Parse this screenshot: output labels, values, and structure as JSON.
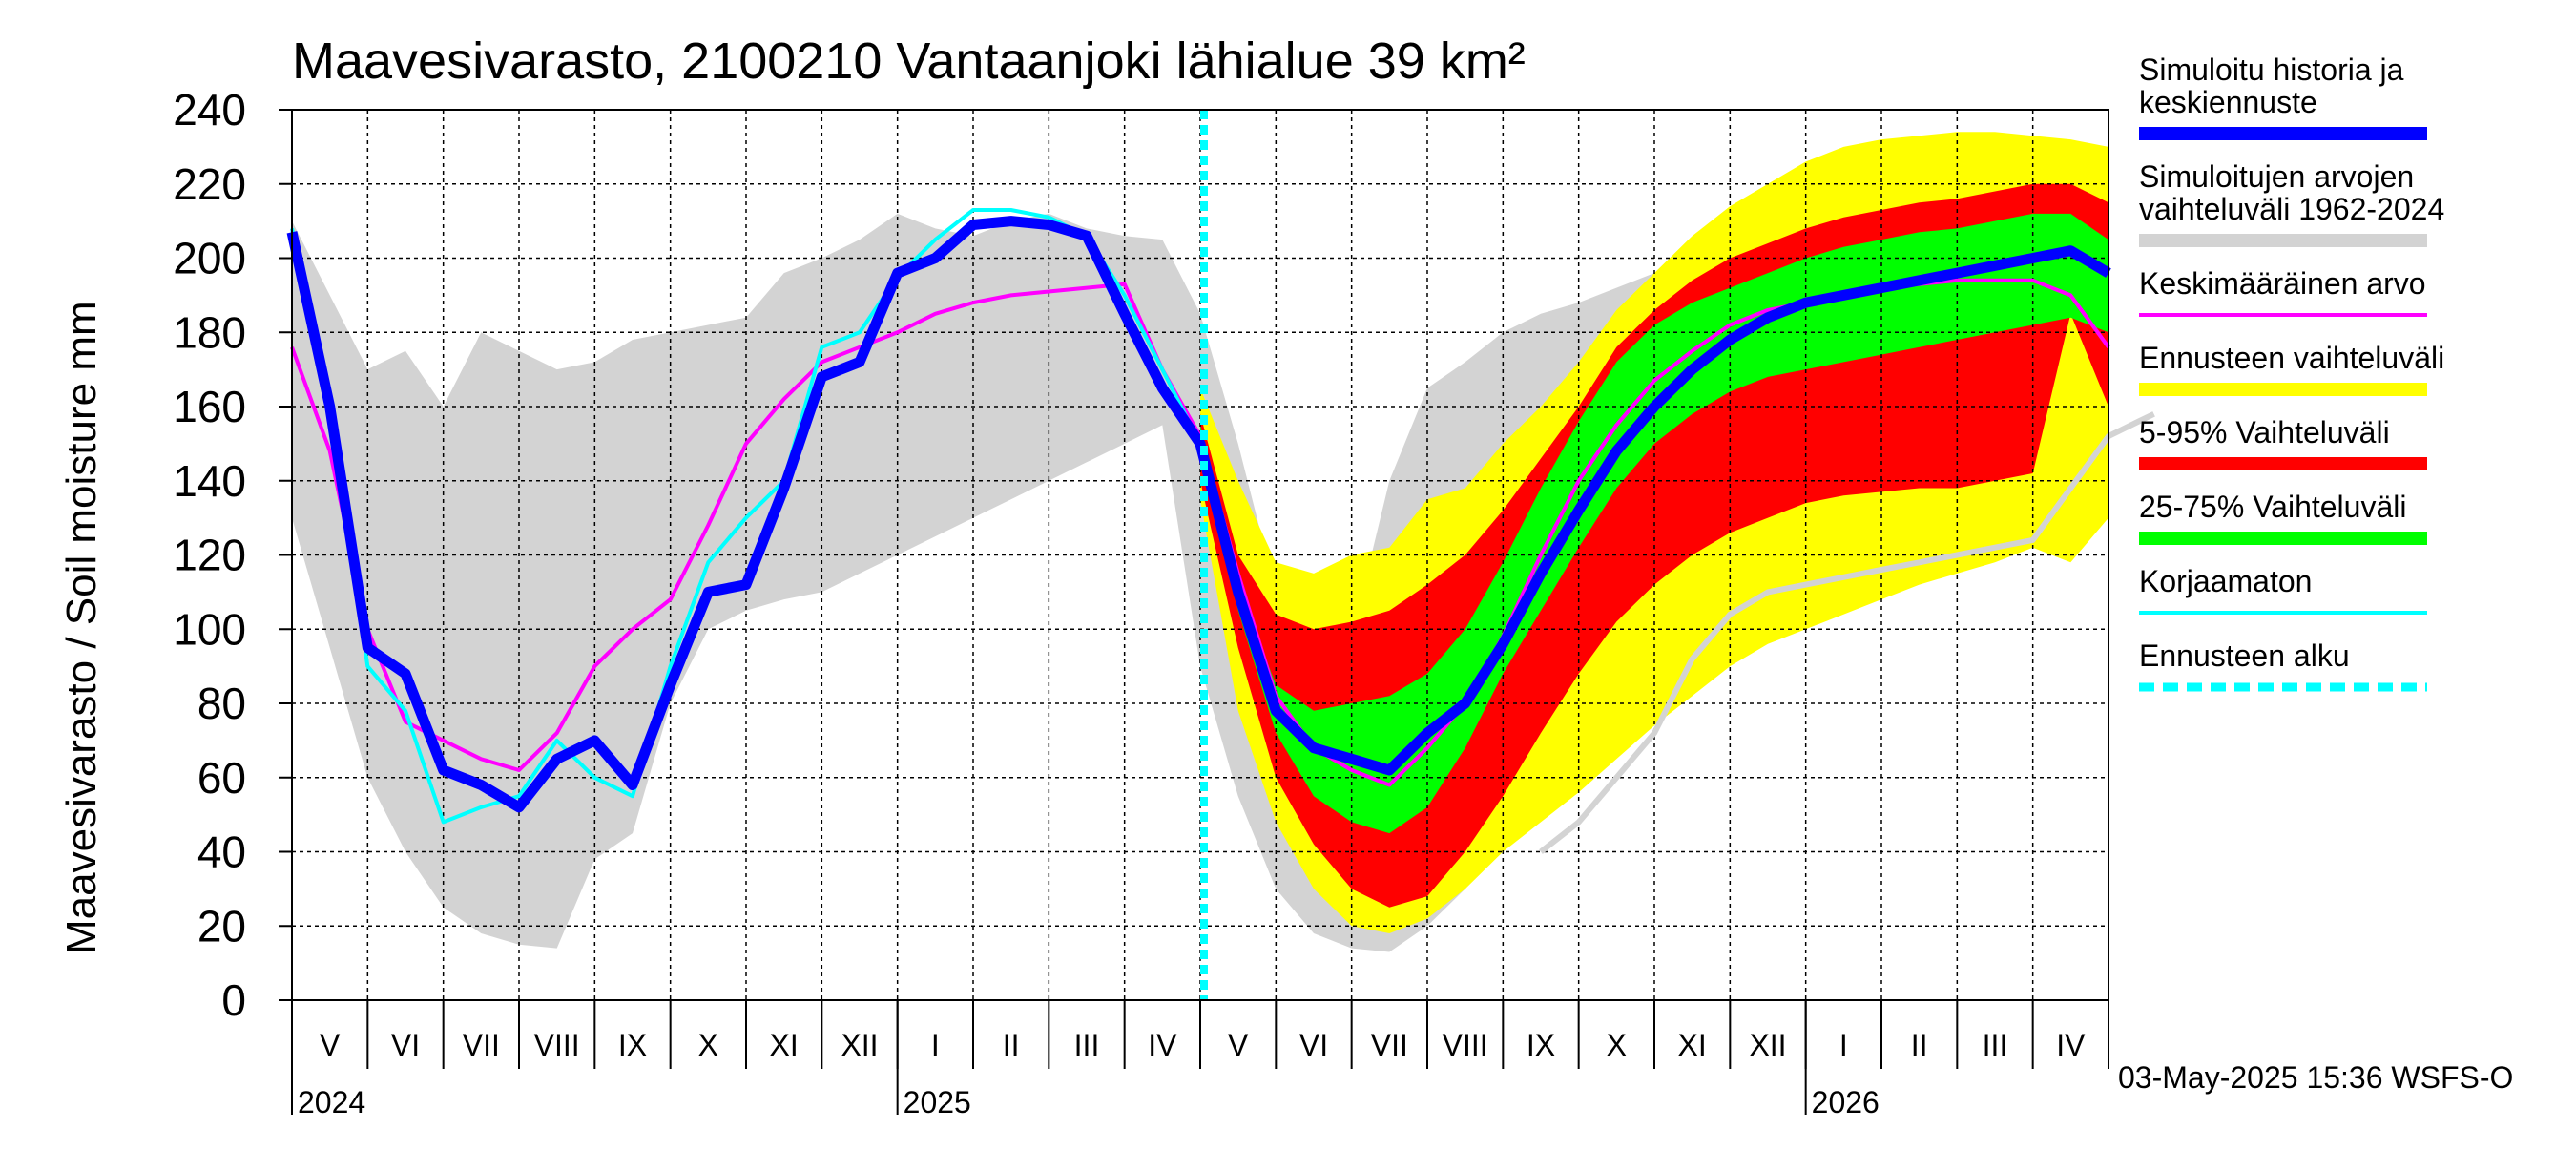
{
  "chart_data": {
    "type": "area",
    "title": "Maavesivarasto, 2100210 Vantaanjoki lähialue 39 km²",
    "ylabel": "Maavesivarasto / Soil moisture   mm",
    "xlabel": "",
    "ylim": [
      0,
      240
    ],
    "yticks": [
      0,
      20,
      40,
      60,
      80,
      100,
      120,
      140,
      160,
      180,
      200,
      220,
      240
    ],
    "grid": true,
    "legend_position": "right",
    "forecast_start_month": 12,
    "month_labels": [
      "V",
      "VI",
      "VII",
      "VIII",
      "IX",
      "X",
      "XI",
      "XII",
      "I",
      "II",
      "III",
      "IV",
      "V",
      "VI",
      "VII",
      "VIII",
      "IX",
      "X",
      "XI",
      "XII",
      "I",
      "II",
      "III",
      "IV"
    ],
    "year_labels": [
      {
        "label": "2024",
        "month_index": 0
      },
      {
        "label": "2025",
        "month_index": 8
      },
      {
        "label": "2026",
        "month_index": 20
      }
    ],
    "legend": [
      {
        "label": "Simuloitu historia ja keskiennuste",
        "color": "#0000ff",
        "style": "thick"
      },
      {
        "label": "Simuloitujen arvojen vaihteluväli 1962-2024",
        "color": "#d3d3d3",
        "style": "band"
      },
      {
        "label": "Keskimääräinen arvo",
        "color": "#ff00ff",
        "style": "line"
      },
      {
        "label": "Ennusteen vaihteluväli",
        "color": "#ffff00",
        "style": "band"
      },
      {
        "label": "5-95% Vaihteluväli",
        "color": "#ff0000",
        "style": "band"
      },
      {
        "label": "25-75% Vaihteluväli",
        "color": "#00ff00",
        "style": "band"
      },
      {
        "label": "Korjaamaton",
        "color": "#00ffff",
        "style": "line"
      },
      {
        "label": "Ennusteen alku",
        "color": "#00ffff",
        "style": "dashed"
      }
    ],
    "series": [
      {
        "name": "Simulated range min 1962-2024",
        "band": "grey_low",
        "x": [
          0,
          0.5,
          1,
          1.5,
          2,
          2.5,
          3,
          3.5,
          4,
          4.5,
          5,
          5.5,
          6,
          6.5,
          7,
          7.5,
          8,
          8.5,
          9,
          9.5,
          10,
          10.5,
          11,
          11.5,
          12,
          12.5,
          13,
          13.5,
          14,
          14.5,
          15,
          15.5,
          16,
          16.5,
          17,
          17.5,
          18,
          18.5,
          19,
          19.5,
          20,
          20.5,
          21,
          21.5,
          22,
          22.5,
          23,
          23.5,
          24
        ],
        "values": [
          130,
          95,
          60,
          40,
          25,
          18,
          15,
          14,
          38,
          45,
          80,
          100,
          105,
          108,
          110,
          115,
          120,
          125,
          130,
          135,
          140,
          145,
          150,
          155,
          90,
          55,
          30,
          18,
          14,
          13,
          20,
          30,
          42,
          55,
          70,
          82,
          90,
          95,
          100,
          105,
          110,
          112,
          114,
          116,
          118,
          120,
          125,
          132,
          132
        ]
      },
      {
        "name": "Simulated range max 1962-2024",
        "band": "grey_high",
        "x": [
          0,
          0.5,
          1,
          1.5,
          2,
          2.5,
          3,
          3.5,
          4,
          4.5,
          5,
          5.5,
          6,
          6.5,
          7,
          7.5,
          8,
          8.5,
          9,
          9.5,
          10,
          10.5,
          11,
          11.5,
          12,
          12.5,
          13,
          13.5,
          14,
          14.5,
          15,
          15.5,
          16,
          16.5,
          17,
          17.5,
          18,
          18.5,
          19,
          19.5,
          20,
          20.5,
          21,
          21.5,
          22,
          22.5,
          23,
          23.5,
          24
        ],
        "values": [
          210,
          190,
          170,
          175,
          160,
          180,
          175,
          170,
          172,
          178,
          180,
          182,
          184,
          196,
          200,
          205,
          212,
          208,
          206,
          210,
          212,
          208,
          206,
          205,
          185,
          150,
          110,
          100,
          98,
          140,
          165,
          172,
          180,
          185,
          188,
          192,
          196,
          200,
          203,
          205,
          207,
          208,
          208,
          208,
          208,
          208,
          208,
          208,
          208
        ]
      },
      {
        "name": "Forecast range min",
        "band": "yellow_low",
        "x": [
          12,
          12.5,
          13,
          13.5,
          14,
          14.5,
          15,
          15.5,
          16,
          16.5,
          17,
          17.5,
          18,
          18.5,
          19,
          19.5,
          20,
          20.5,
          21,
          21.5,
          22,
          22.5,
          23,
          23.5,
          24
        ],
        "values": [
          135,
          78,
          48,
          30,
          20,
          18,
          22,
          30,
          40,
          48,
          56,
          65,
          74,
          82,
          90,
          96,
          100,
          104,
          108,
          112,
          115,
          118,
          122,
          118,
          130
        ]
      },
      {
        "name": "Forecast range max",
        "band": "yellow_high",
        "x": [
          12,
          12.5,
          13,
          13.5,
          14,
          14.5,
          15,
          15.5,
          16,
          16.5,
          17,
          17.5,
          18,
          18.5,
          19,
          19.5,
          20,
          20.5,
          21,
          21.5,
          22,
          22.5,
          23,
          23.5,
          24
        ],
        "values": [
          165,
          140,
          118,
          115,
          120,
          122,
          135,
          138,
          150,
          160,
          172,
          186,
          196,
          206,
          214,
          220,
          226,
          230,
          232,
          233,
          234,
          234,
          233,
          232,
          230
        ]
      },
      {
        "name": "5-95% range low",
        "band": "red_low",
        "x": [
          12,
          12.5,
          13,
          13.5,
          14,
          14.5,
          15,
          15.5,
          16,
          16.5,
          17,
          17.5,
          18,
          18.5,
          19,
          19.5,
          20,
          20.5,
          21,
          21.5,
          22,
          22.5,
          23,
          23.5,
          24
        ],
        "values": [
          140,
          95,
          60,
          42,
          30,
          25,
          28,
          40,
          55,
          72,
          88,
          102,
          112,
          120,
          126,
          130,
          134,
          136,
          137,
          138,
          138,
          140,
          142,
          185,
          160
        ]
      },
      {
        "name": "5-95% range high",
        "band": "red_high",
        "x": [
          12,
          12.5,
          13,
          13.5,
          14,
          14.5,
          15,
          15.5,
          16,
          16.5,
          17,
          17.5,
          18,
          18.5,
          19,
          19.5,
          20,
          20.5,
          21,
          21.5,
          22,
          22.5,
          23,
          23.5,
          24
        ],
        "values": [
          158,
          120,
          104,
          100,
          102,
          105,
          112,
          120,
          132,
          146,
          160,
          176,
          186,
          194,
          200,
          204,
          208,
          211,
          213,
          215,
          216,
          218,
          220,
          220,
          215
        ]
      },
      {
        "name": "25-75% range low",
        "band": "green_low",
        "x": [
          12,
          12.5,
          13,
          13.5,
          14,
          14.5,
          15,
          15.5,
          16,
          16.5,
          17,
          17.5,
          18,
          18.5,
          19,
          19.5,
          20,
          20.5,
          21,
          21.5,
          22,
          22.5,
          23,
          23.5,
          24
        ],
        "values": [
          148,
          105,
          72,
          55,
          48,
          45,
          52,
          68,
          88,
          105,
          122,
          138,
          150,
          158,
          164,
          168,
          170,
          172,
          174,
          176,
          178,
          180,
          182,
          184,
          180
        ]
      },
      {
        "name": "25-75% range high",
        "band": "green_high",
        "x": [
          12,
          12.5,
          13,
          13.5,
          14,
          14.5,
          15,
          15.5,
          16,
          16.5,
          17,
          17.5,
          18,
          18.5,
          19,
          19.5,
          20,
          20.5,
          21,
          21.5,
          22,
          22.5,
          23,
          23.5,
          24
        ],
        "values": [
          155,
          112,
          85,
          78,
          80,
          82,
          88,
          100,
          118,
          138,
          156,
          172,
          182,
          188,
          192,
          196,
          200,
          203,
          205,
          207,
          208,
          210,
          212,
          212,
          205
        ]
      },
      {
        "name": "Keskimääräinen arvo",
        "line": "magenta",
        "x": [
          0,
          0.5,
          1,
          1.5,
          2,
          2.5,
          3,
          3.5,
          4,
          4.5,
          5,
          5.5,
          6,
          6.5,
          7,
          7.5,
          8,
          8.5,
          9,
          9.5,
          10,
          10.5,
          11,
          11.5,
          12,
          12.5,
          13,
          13.5,
          14,
          14.5,
          15,
          15.5,
          16,
          16.5,
          17,
          17.5,
          18,
          18.5,
          19,
          19.5,
          20,
          20.5,
          21,
          21.5,
          22,
          22.5,
          23,
          23.5,
          24
        ],
        "values": [
          176,
          148,
          100,
          75,
          70,
          65,
          62,
          72,
          90,
          100,
          108,
          128,
          150,
          162,
          172,
          176,
          180,
          185,
          188,
          190,
          191,
          192,
          193,
          170,
          152,
          115,
          82,
          68,
          62,
          58,
          68,
          80,
          98,
          120,
          140,
          155,
          167,
          175,
          182,
          186,
          188,
          190,
          192,
          193,
          194,
          194,
          194,
          190,
          176
        ]
      },
      {
        "name": "Simuloitu historia ja keskiennuste",
        "line": "blue",
        "x": [
          0,
          0.5,
          1,
          1.5,
          2,
          2.5,
          3,
          3.5,
          4,
          4.5,
          5,
          5.5,
          6,
          6.5,
          7,
          7.5,
          8,
          8.5,
          9,
          9.5,
          10,
          10.5,
          11,
          11.5,
          12,
          12.5,
          13,
          13.5,
          14,
          14.5,
          15,
          15.5,
          16,
          16.5,
          17,
          17.5,
          18,
          18.5,
          19,
          19.5,
          20,
          20.5,
          21,
          21.5,
          22,
          22.5,
          23,
          23.5,
          24
        ],
        "values": [
          207,
          160,
          95,
          88,
          62,
          58,
          52,
          65,
          70,
          58,
          85,
          110,
          112,
          138,
          168,
          172,
          196,
          200,
          209,
          210,
          209,
          206,
          185,
          165,
          150,
          110,
          78,
          68,
          65,
          62,
          72,
          80,
          96,
          115,
          132,
          148,
          160,
          170,
          178,
          184,
          188,
          190,
          192,
          194,
          196,
          198,
          200,
          202,
          196
        ]
      },
      {
        "name": "Korjaamaton",
        "line": "cyan",
        "x": [
          0,
          0.5,
          1,
          1.5,
          2,
          2.5,
          3,
          3.5,
          4,
          4.5,
          5,
          5.5,
          6,
          6.5,
          7,
          7.5,
          8,
          8.5,
          9,
          9.5,
          10,
          10.5,
          11,
          11.5,
          12
        ],
        "values": [
          208,
          160,
          90,
          78,
          48,
          52,
          55,
          70,
          60,
          55,
          90,
          118,
          130,
          140,
          176,
          180,
          195,
          205,
          213,
          213,
          211,
          206,
          190,
          170,
          150
        ]
      },
      {
        "name": "Historical reference (grey line)",
        "line": "lightgrey",
        "x": [
          16.5,
          17,
          17.5,
          18,
          18.5,
          19,
          19.5,
          20,
          20.5,
          21,
          21.5,
          22,
          22.5,
          23,
          23.5,
          24,
          24.4,
          24.6
        ],
        "values": [
          40,
          48,
          60,
          72,
          92,
          104,
          110,
          112,
          114,
          116,
          118,
          120,
          122,
          124,
          138,
          152,
          156,
          158
        ]
      }
    ]
  },
  "footer": {
    "timestamp": "03-May-2025 15:36 WSFS-O"
  }
}
